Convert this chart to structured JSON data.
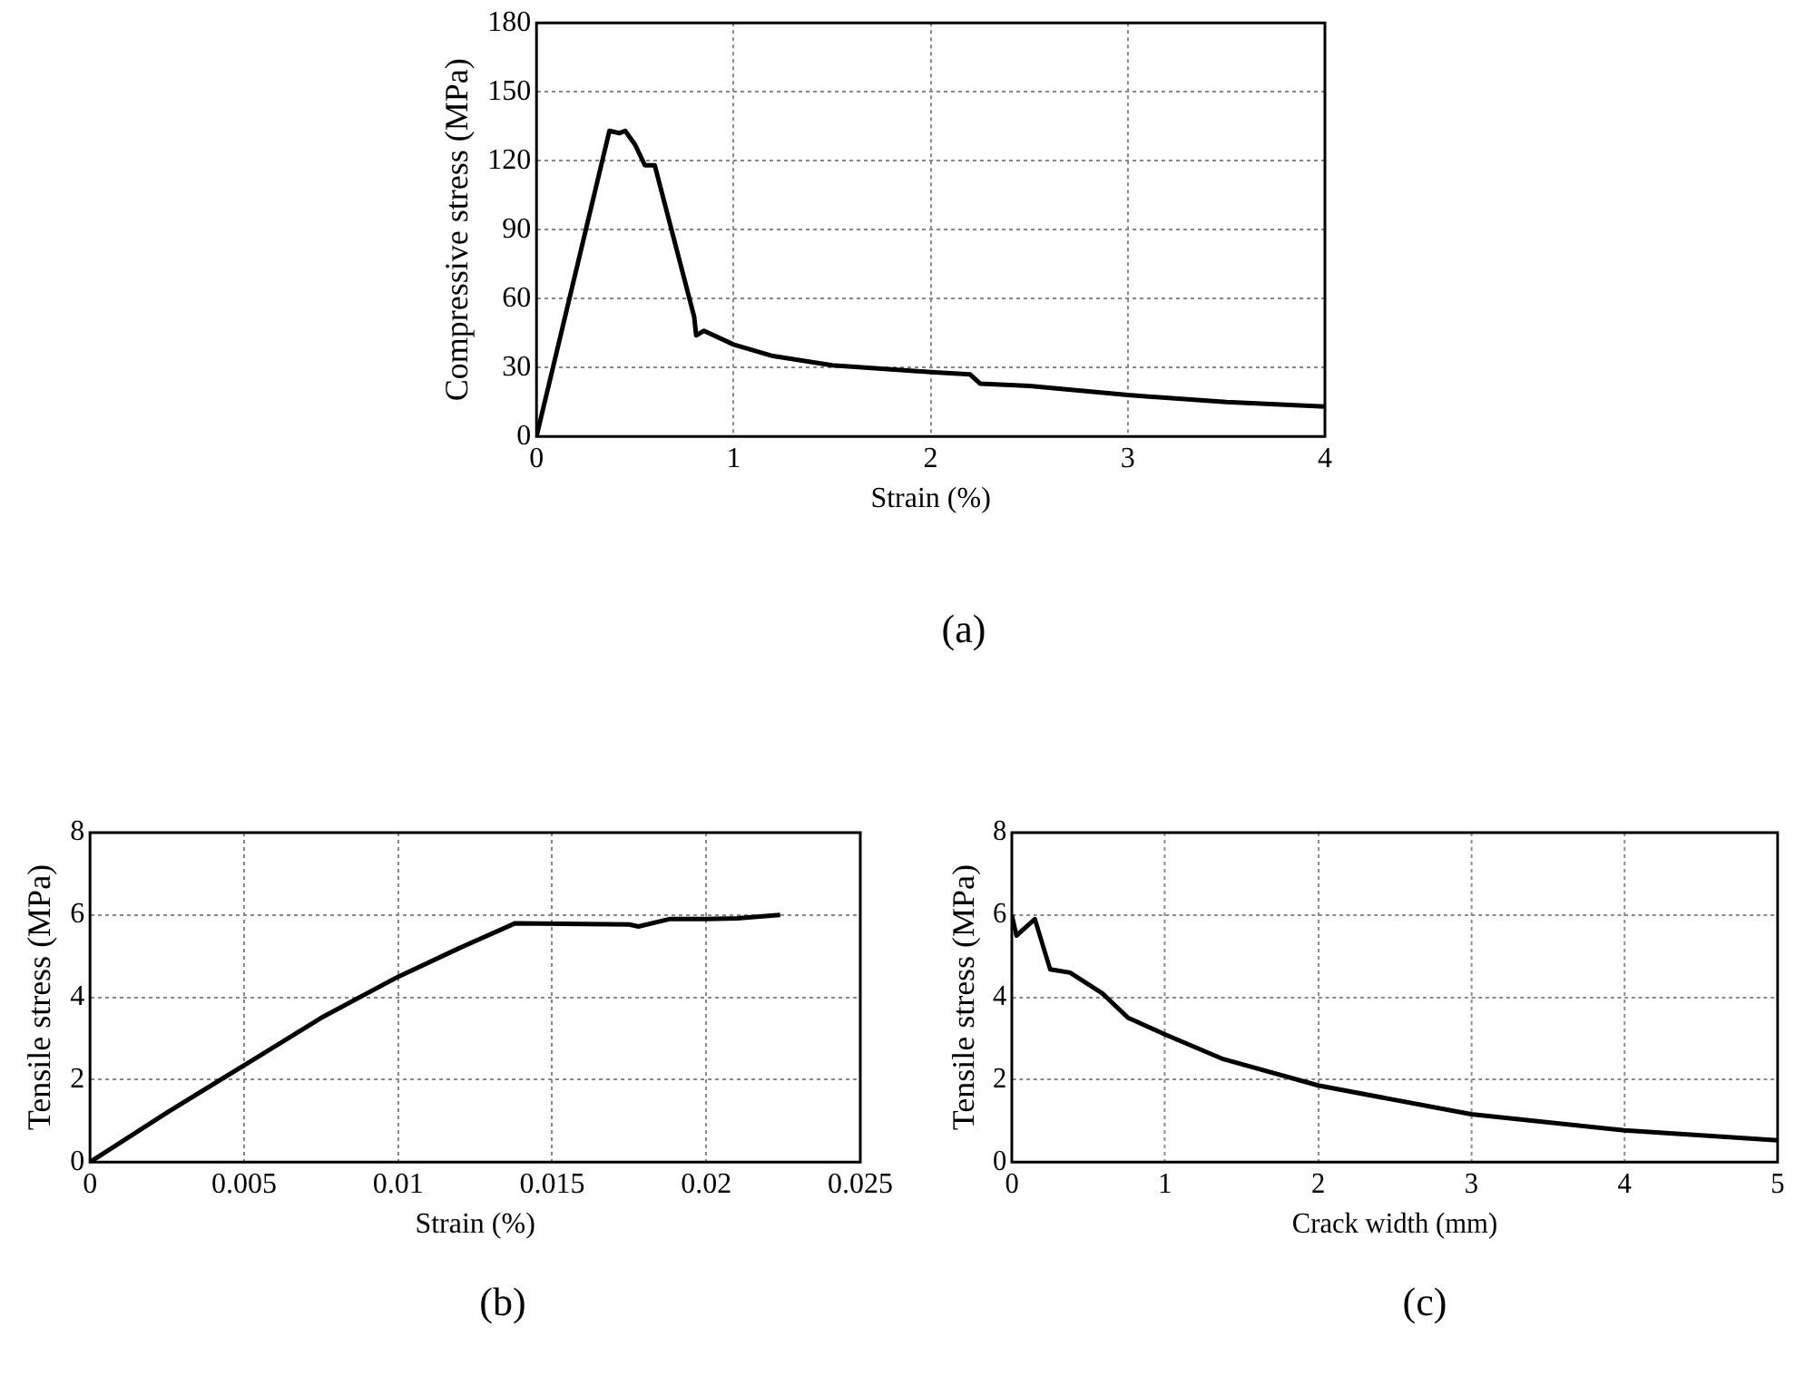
{
  "chart_data": [
    {
      "type": "line",
      "xlabel": "Strain (%)",
      "ylabel": "Compressive stress (MPa)",
      "annotations": [
        "(a)"
      ],
      "xlim": [
        0,
        4
      ],
      "ylim": [
        0,
        180
      ],
      "xticks": [
        0,
        1,
        2,
        3,
        4
      ],
      "yticks": [
        0,
        30,
        60,
        90,
        120,
        150,
        180
      ],
      "grid": true,
      "legend": false,
      "marker": "none",
      "line_style": "solid",
      "x": [
        0,
        0.37,
        0.42,
        0.45,
        0.5,
        0.55,
        0.6,
        0.8,
        0.81,
        0.85,
        1,
        1.2,
        1.5,
        2,
        2.2,
        2.25,
        2.5,
        3,
        3.5,
        4
      ],
      "series": [
        {
          "color": "#000000",
          "values": [
            0,
            133,
            132,
            133,
            127,
            118,
            118,
            52,
            44,
            46,
            40,
            35,
            31,
            28,
            27,
            23,
            22,
            18,
            15,
            13
          ]
        }
      ]
    },
    {
      "type": "line",
      "xlabel": "Strain (%)",
      "ylabel": "Tensile stress (MPa)",
      "annotations": [
        "(b)"
      ],
      "xlim": [
        0,
        0.025
      ],
      "ylim": [
        0,
        8
      ],
      "xticks": [
        0,
        0.005,
        0.01,
        0.015,
        0.02,
        0.025
      ],
      "yticks": [
        0,
        2,
        4,
        6,
        8
      ],
      "grid": true,
      "legend": false,
      "marker": "none",
      "line_style": "solid",
      "x": [
        0,
        0.0025,
        0.005,
        0.0075,
        0.01,
        0.012,
        0.0138,
        0.016,
        0.0175,
        0.0178,
        0.0188,
        0.02,
        0.021,
        0.0224
      ],
      "series": [
        {
          "color": "#000000",
          "values": [
            0,
            1.2,
            2.35,
            3.5,
            4.5,
            5.2,
            5.8,
            5.78,
            5.77,
            5.72,
            5.9,
            5.9,
            5.92,
            6.0
          ]
        }
      ]
    },
    {
      "type": "line",
      "xlabel": "Crack width (mm)",
      "ylabel": "Tensile stress (MPa)",
      "annotations": [
        "(c)"
      ],
      "xlim": [
        0,
        5
      ],
      "ylim": [
        0,
        8
      ],
      "xticks": [
        0,
        1,
        2,
        3,
        4,
        5
      ],
      "yticks": [
        0,
        2,
        4,
        6,
        8
      ],
      "grid": true,
      "legend": false,
      "marker": "none",
      "line_style": "solid",
      "x": [
        0,
        0.03,
        0.15,
        0.25,
        0.38,
        0.59,
        0.76,
        1,
        1.38,
        2,
        3,
        4,
        5
      ],
      "series": [
        {
          "color": "#000000",
          "values": [
            6,
            5.5,
            5.9,
            4.68,
            4.6,
            4.1,
            3.5,
            3.1,
            2.5,
            1.86,
            1.16,
            0.77,
            0.53
          ]
        }
      ]
    }
  ]
}
